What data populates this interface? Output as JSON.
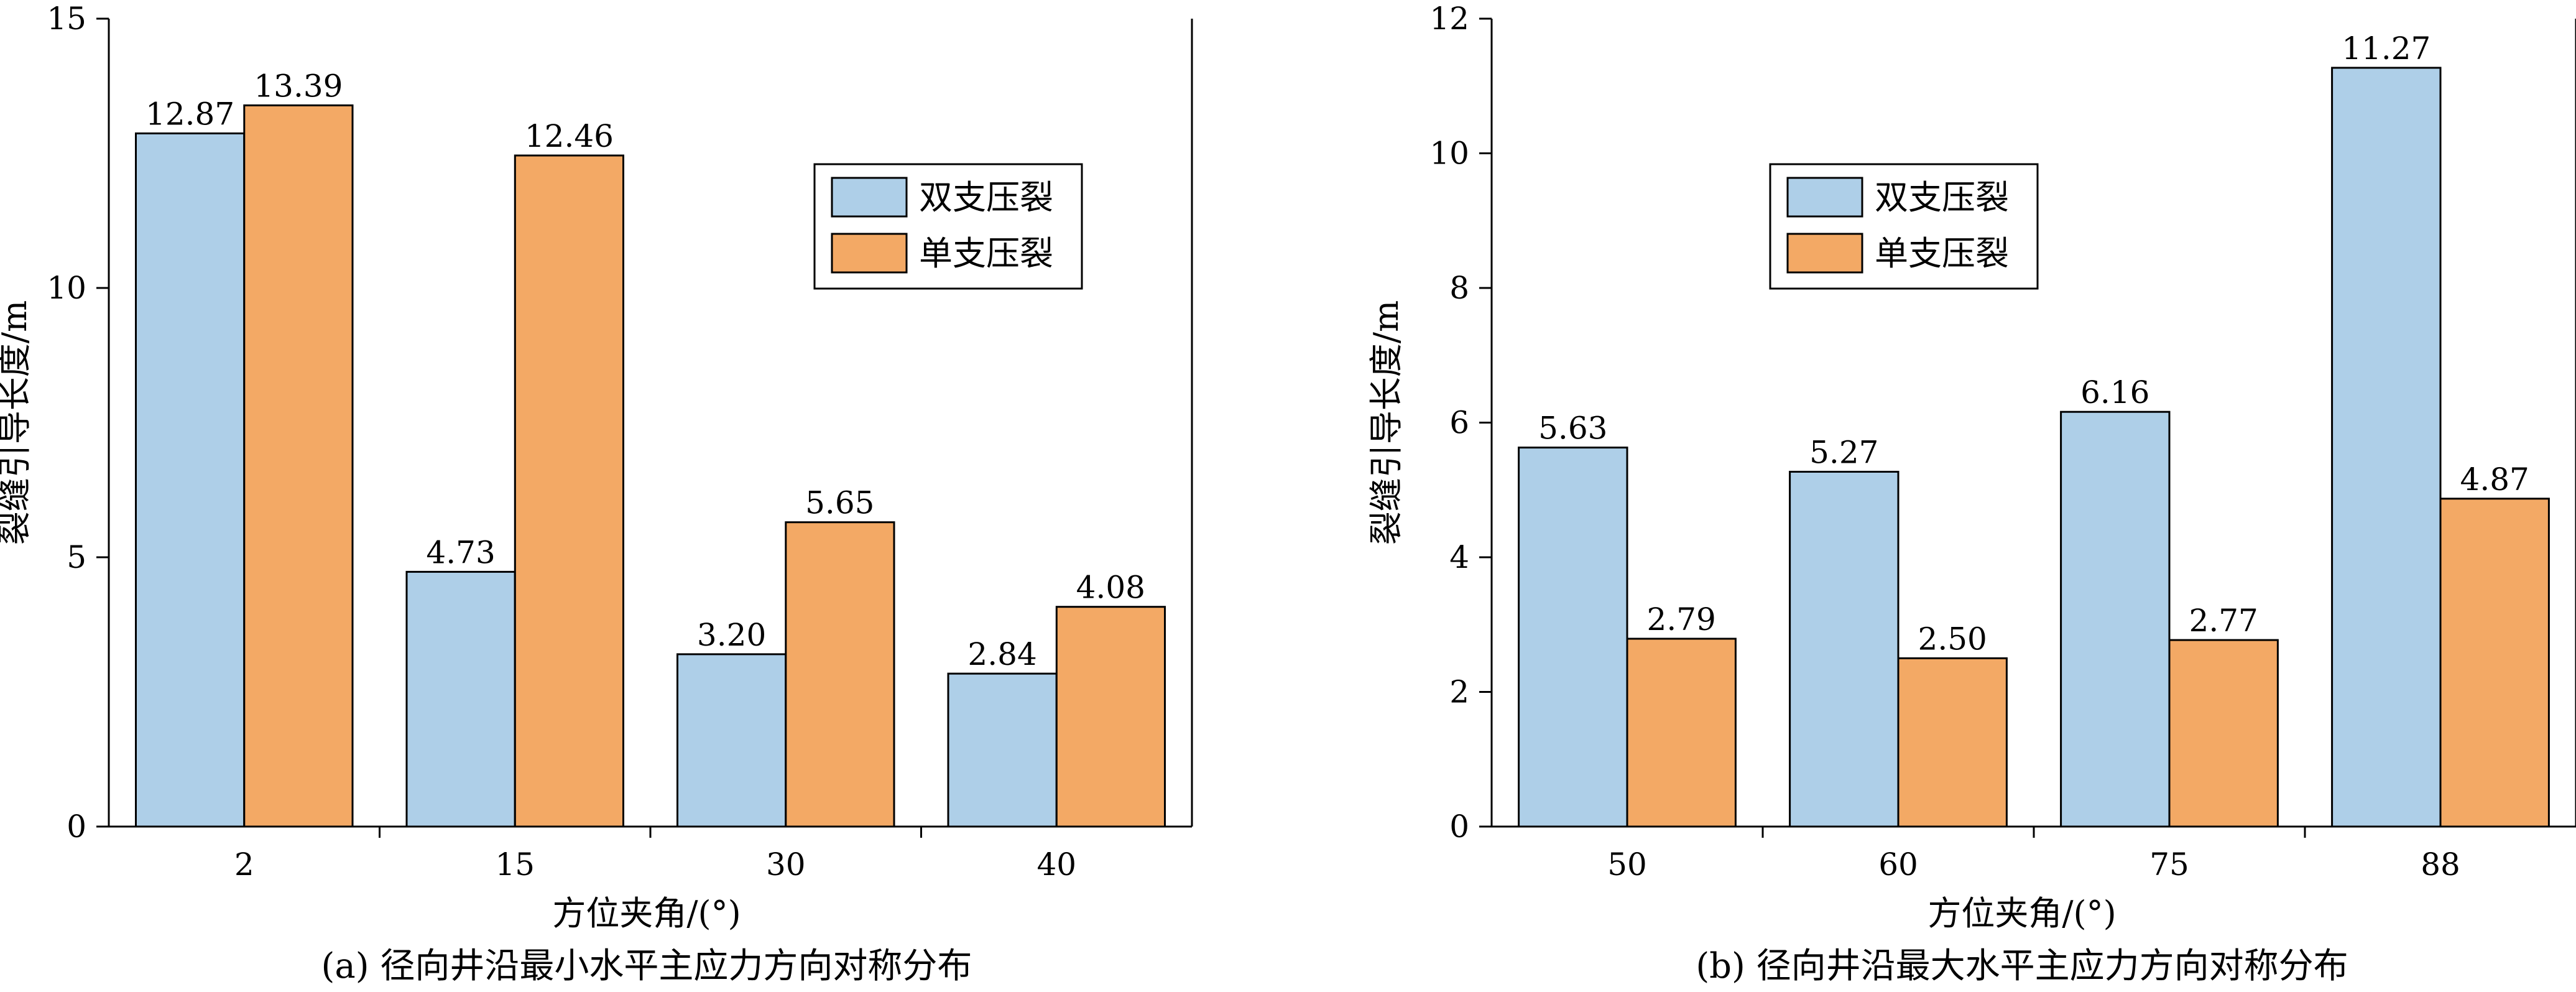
{
  "colors": {
    "series_1": "#AECFE8",
    "series_2": "#F3A965"
  },
  "chart_data": [
    {
      "type": "bar",
      "caption": "(a) 径向井沿最小水平主应力方向对称分布",
      "xlabel": "方位夹角/(°)",
      "ylabel": "裂缝引导长度/m",
      "categories": [
        "2",
        "15",
        "30",
        "40"
      ],
      "series": [
        {
          "name": "双支压裂",
          "values": [
            12.87,
            4.73,
            3.2,
            2.84
          ],
          "labels": [
            "12.87",
            "4.73",
            "3.20",
            "2.84"
          ]
        },
        {
          "name": "单支压裂",
          "values": [
            13.39,
            12.46,
            5.65,
            4.08
          ],
          "labels": [
            "13.39",
            "12.46",
            "5.65",
            "4.08"
          ]
        }
      ],
      "ylim": [
        0,
        15
      ],
      "yticks": [
        0,
        5,
        10,
        15
      ],
      "legend_position": "top-right",
      "grid": false
    },
    {
      "type": "bar",
      "caption": "(b) 径向井沿最大水平主应力方向对称分布",
      "xlabel": "方位夹角/(°)",
      "ylabel": "裂缝引导长度/m",
      "categories": [
        "50",
        "60",
        "75",
        "88"
      ],
      "series": [
        {
          "name": "双支压裂",
          "values": [
            5.63,
            5.27,
            6.16,
            11.27
          ],
          "labels": [
            "5.63",
            "5.27",
            "6.16",
            "11.27"
          ]
        },
        {
          "name": "单支压裂",
          "values": [
            2.79,
            2.5,
            2.77,
            4.87
          ],
          "labels": [
            "2.79",
            "2.50",
            "2.77",
            "4.87"
          ]
        }
      ],
      "ylim": [
        0,
        12
      ],
      "yticks": [
        0,
        2,
        4,
        6,
        8,
        10,
        12
      ],
      "legend_position": "top-right",
      "grid": false
    }
  ]
}
